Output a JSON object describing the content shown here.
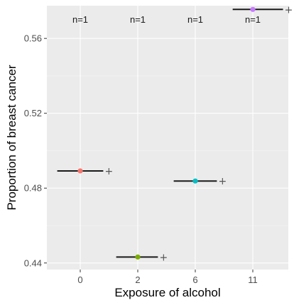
{
  "chart_data": {
    "type": "scatter",
    "xlabel": "Exposure of alcohol",
    "ylabel": "Proportion of breast cancer",
    "categories": [
      "0",
      "2",
      "6",
      "11"
    ],
    "ylim": [
      0.4365,
      0.5775
    ],
    "yticks": [
      0.44,
      0.48,
      0.52,
      0.56
    ],
    "ytick_labels": [
      "0.44",
      "0.48",
      "0.52",
      "0.56"
    ],
    "grid": true,
    "points": [
      {
        "category": "0",
        "y": 0.4892,
        "xerr_low": -0.8,
        "xerr_high": 0.8,
        "color": "#F8766D",
        "n_label": "n=1"
      },
      {
        "category": "2",
        "y": 0.4432,
        "xerr_low": -0.75,
        "xerr_high": 0.7,
        "color": "#7CAE00",
        "n_label": "n=1"
      },
      {
        "category": "6",
        "y": 0.4838,
        "xerr_low": -0.75,
        "xerr_high": 0.75,
        "color": "#00BFC4",
        "n_label": "n=1"
      },
      {
        "category": "11",
        "y": 0.5755,
        "xerr_low": -0.7,
        "xerr_high": 1.05,
        "color": "#C77CFF",
        "n_label": "n=1"
      }
    ],
    "plus_marker": "+"
  }
}
